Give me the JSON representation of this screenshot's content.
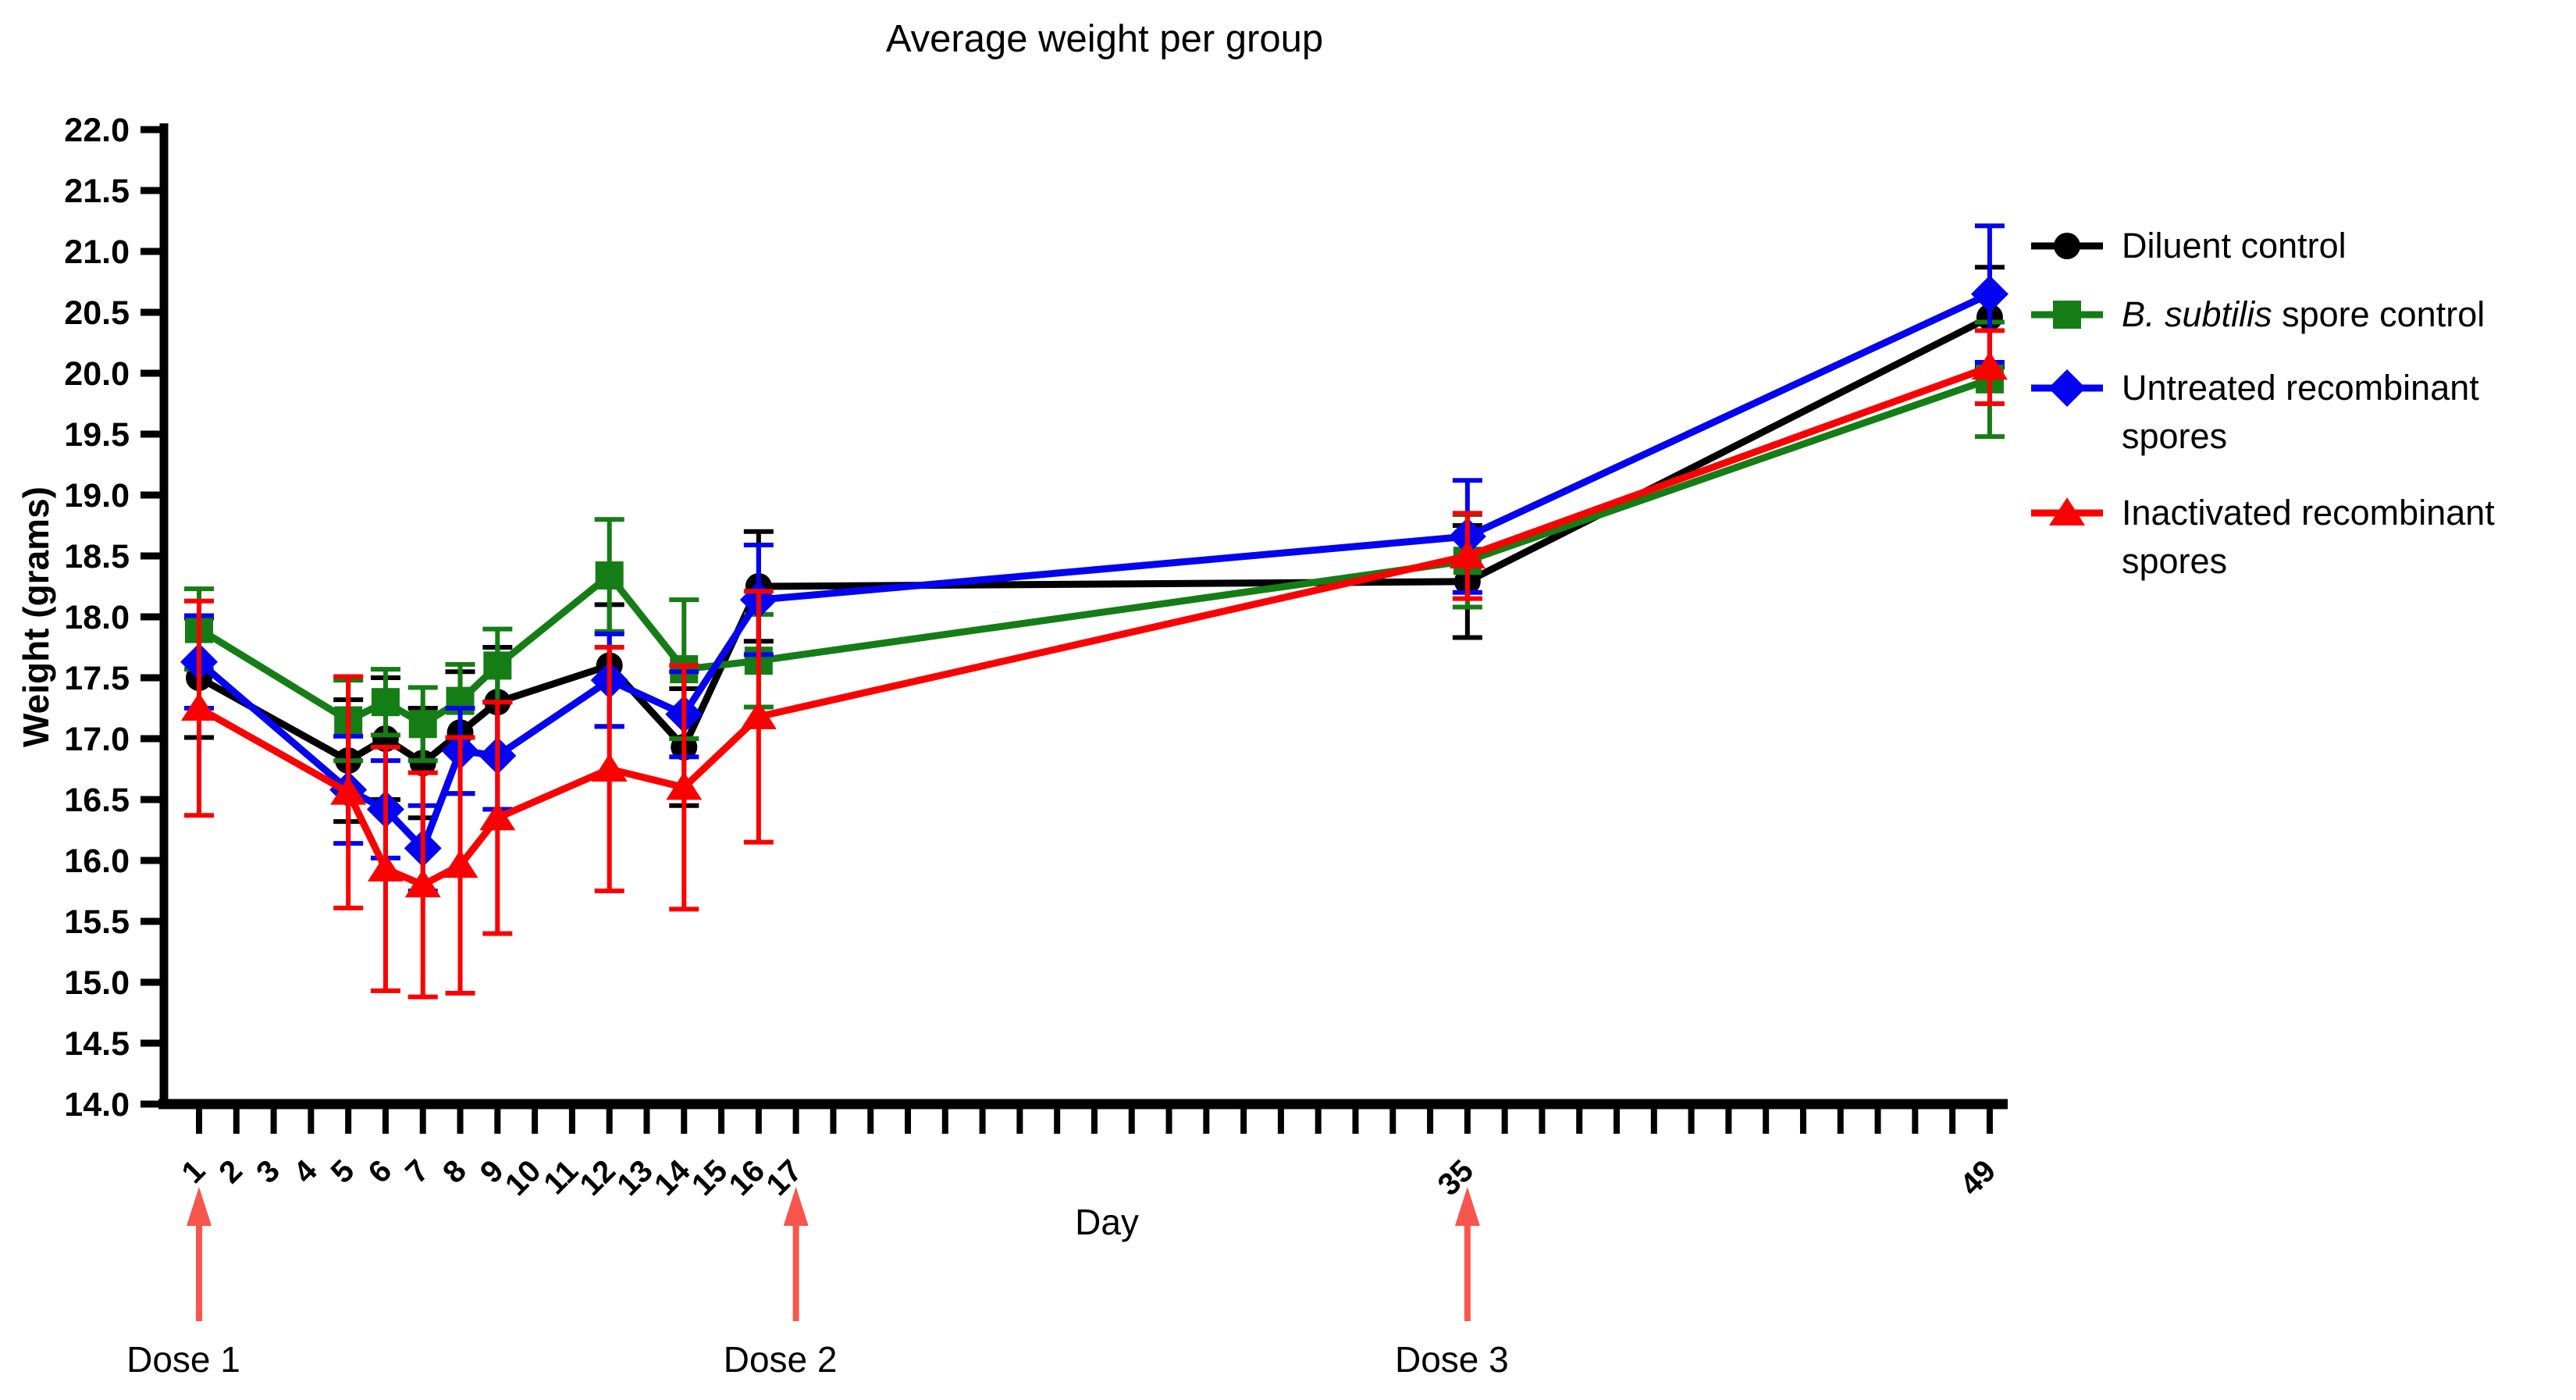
{
  "chart_data": {
    "type": "line",
    "title": "Average weight per group",
    "xlabel": "Day",
    "ylabel": "Weight (grams)",
    "ylim": [
      14.0,
      22.0
    ],
    "ytick_step": 0.5,
    "ytick_labels": [
      "14.0",
      "14.5",
      "15.0",
      "15.5",
      "16.0",
      "16.5",
      "17.0",
      "17.5",
      "18.0",
      "18.5",
      "19.0",
      "19.5",
      "20.0",
      "20.5",
      "21.0",
      "21.5",
      "22.0"
    ],
    "x_day_min": 1,
    "x_day_max": 49,
    "xticks_labeled": [
      1,
      2,
      3,
      4,
      5,
      6,
      7,
      8,
      9,
      10,
      11,
      12,
      13,
      14,
      15,
      16,
      17,
      35,
      49
    ],
    "grid": false,
    "legend_position": "right",
    "error_bars": "sem, both directions with caps",
    "series": [
      {
        "name": "Diluent control",
        "marker": "circle",
        "color": "#000000",
        "points": [
          {
            "day": 1,
            "value": 17.5,
            "err": 0.49
          },
          {
            "day": 5,
            "value": 16.82,
            "err": 0.5
          },
          {
            "day": 6,
            "value": 17.0,
            "err": 0.5
          },
          {
            "day": 7,
            "value": 16.8,
            "err": 0.45
          },
          {
            "day": 8,
            "value": 17.05,
            "err": 0.5
          },
          {
            "day": 9,
            "value": 17.3,
            "err": 0.45
          },
          {
            "day": 12,
            "value": 17.6,
            "err": 0.5
          },
          {
            "day": 14,
            "value": 16.93,
            "err": 0.48
          },
          {
            "day": 16,
            "value": 18.25,
            "err": 0.45
          },
          {
            "day": 35,
            "value": 18.29,
            "err": 0.46
          },
          {
            "day": 49,
            "value": 20.46,
            "err": 0.41
          }
        ]
      },
      {
        "name": "B. subtilis spore control",
        "marker": "square",
        "color": "#157d15",
        "points": [
          {
            "day": 1,
            "value": 17.9,
            "err": 0.33
          },
          {
            "day": 5,
            "value": 17.15,
            "err": 0.33
          },
          {
            "day": 6,
            "value": 17.3,
            "err": 0.27
          },
          {
            "day": 7,
            "value": 17.12,
            "err": 0.3
          },
          {
            "day": 8,
            "value": 17.31,
            "err": 0.3
          },
          {
            "day": 9,
            "value": 17.6,
            "err": 0.3
          },
          {
            "day": 12,
            "value": 18.34,
            "err": 0.46
          },
          {
            "day": 14,
            "value": 17.57,
            "err": 0.57
          },
          {
            "day": 16,
            "value": 17.64,
            "err": 0.38
          },
          {
            "day": 35,
            "value": 18.46,
            "err": 0.38
          },
          {
            "day": 49,
            "value": 19.95,
            "err": 0.47
          }
        ]
      },
      {
        "name": "Untreated recombinant spores",
        "marker": "diamond",
        "color": "#0404f0",
        "points": [
          {
            "day": 1,
            "value": 17.63,
            "err": 0.38
          },
          {
            "day": 5,
            "value": 16.58,
            "err": 0.44
          },
          {
            "day": 6,
            "value": 16.42,
            "err": 0.4
          },
          {
            "day": 7,
            "value": 16.1,
            "err": 0.35
          },
          {
            "day": 8,
            "value": 16.9,
            "err": 0.35
          },
          {
            "day": 9,
            "value": 16.86,
            "err": 0.44
          },
          {
            "day": 12,
            "value": 17.48,
            "err": 0.38
          },
          {
            "day": 14,
            "value": 17.2,
            "err": 0.35
          },
          {
            "day": 16,
            "value": 18.14,
            "err": 0.45
          },
          {
            "day": 35,
            "value": 18.66,
            "err": 0.46
          },
          {
            "day": 49,
            "value": 20.65,
            "err": 0.56
          }
        ]
      },
      {
        "name": "Inactivated recombinant spores",
        "marker": "triangle",
        "color": "#fb0000",
        "points": [
          {
            "day": 1,
            "value": 17.25,
            "err": 0.88
          },
          {
            "day": 5,
            "value": 16.56,
            "err": 0.95
          },
          {
            "day": 6,
            "value": 15.93,
            "err": 1.0
          },
          {
            "day": 7,
            "value": 15.8,
            "err": 0.92
          },
          {
            "day": 8,
            "value": 15.96,
            "err": 1.05
          },
          {
            "day": 9,
            "value": 16.35,
            "err": 0.95
          },
          {
            "day": 12,
            "value": 16.75,
            "err": 1.0
          },
          {
            "day": 14,
            "value": 16.6,
            "err": 1.0
          },
          {
            "day": 16,
            "value": 17.18,
            "err": 1.03
          },
          {
            "day": 35,
            "value": 18.5,
            "err": 0.35
          },
          {
            "day": 49,
            "value": 20.05,
            "err": 0.3
          }
        ]
      }
    ],
    "legend": [
      {
        "marker": "circle",
        "color": "#000000",
        "lines": [
          [
            {
              "text": "Diluent control"
            }
          ]
        ]
      },
      {
        "marker": "square",
        "color": "#157d15",
        "lines": [
          [
            {
              "text": "B. subtilis",
              "italic": true
            },
            {
              "text": " spore control"
            }
          ]
        ]
      },
      {
        "marker": "diamond",
        "color": "#0404f0",
        "lines": [
          [
            {
              "text": "Untreated recombinant"
            }
          ],
          [
            {
              "text": "spores"
            }
          ]
        ]
      },
      {
        "marker": "triangle",
        "color": "#fb0000",
        "lines": [
          [
            {
              "text": "Inactivated recombinant"
            }
          ],
          [
            {
              "text": "spores"
            }
          ]
        ]
      }
    ],
    "annotations": {
      "arrow_color": "#f8564d",
      "items": [
        {
          "label": "Dose 1",
          "day": 1
        },
        {
          "label": "Dose 2",
          "day": 17
        },
        {
          "label": "Dose 3",
          "day": 35
        }
      ]
    }
  }
}
